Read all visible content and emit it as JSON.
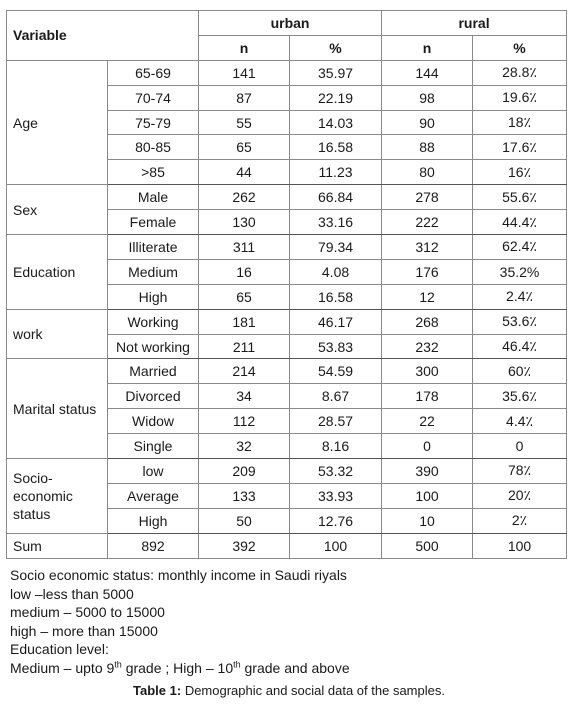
{
  "table": {
    "headers": {
      "variable": "Variable",
      "urban": "urban",
      "rural": "rural",
      "n": "n",
      "pct": "%"
    },
    "groups": [
      {
        "label": "Age",
        "rows": [
          {
            "cat": "65-69",
            "un": "141",
            "up": "35.97",
            "rn": "144",
            "rp": "28.8٪"
          },
          {
            "cat": "70-74",
            "un": "87",
            "up": "22.19",
            "rn": "98",
            "rp": "19.6٪"
          },
          {
            "cat": "75-79",
            "un": "55",
            "up": "14.03",
            "rn": "90",
            "rp": "18٪"
          },
          {
            "cat": "80-85",
            "un": "65",
            "up": "16.58",
            "rn": "88",
            "rp": "17.6٪"
          },
          {
            "cat": ">85",
            "un": "44",
            "up": "11.23",
            "rn": "80",
            "rp": "16٪"
          }
        ]
      },
      {
        "label": "Sex",
        "rows": [
          {
            "cat": "Male",
            "un": "262",
            "up": "66.84",
            "rn": "278",
            "rp": "55.6٪"
          },
          {
            "cat": "Female",
            "un": "130",
            "up": "33.16",
            "rn": "222",
            "rp": "44.4٪"
          }
        ]
      },
      {
        "label": "Education",
        "rows": [
          {
            "cat": "Illiterate",
            "un": "311",
            "up": "79.34",
            "rn": "312",
            "rp": "62.4٪"
          },
          {
            "cat": "Medium",
            "un": "16",
            "up": "4.08",
            "rn": "176",
            "rp": "35.2%"
          },
          {
            "cat": "High",
            "un": "65",
            "up": "16.58",
            "rn": "12",
            "rp": "2.4٪"
          }
        ]
      },
      {
        "label": "work",
        "rows": [
          {
            "cat": "Working",
            "un": "181",
            "up": "46.17",
            "rn": "268",
            "rp": "53.6٪"
          },
          {
            "cat": "Not working",
            "un": "211",
            "up": "53.83",
            "rn": "232",
            "rp": "46.4٪"
          }
        ]
      },
      {
        "label": "Marital status",
        "rows": [
          {
            "cat": "Married",
            "un": "214",
            "up": "54.59",
            "rn": "300",
            "rp": "60٪"
          },
          {
            "cat": "Divorced",
            "un": "34",
            "up": "8.67",
            "rn": "178",
            "rp": "35.6٪"
          },
          {
            "cat": "Widow",
            "un": "112",
            "up": "28.57",
            "rn": "22",
            "rp": "4.4٪"
          },
          {
            "cat": "Single",
            "un": "32",
            "up": "8.16",
            "rn": "0",
            "rp": "0"
          }
        ]
      },
      {
        "label": "Socio-economic status",
        "label_lines": [
          "Socio-",
          "economic",
          "status"
        ],
        "rows": [
          {
            "cat": "low",
            "un": "209",
            "up": "53.32",
            "rn": "390",
            "rp": "78٪"
          },
          {
            "cat": "Average",
            "un": "133",
            "up": "33.93",
            "rn": "100",
            "rp": "20٪"
          },
          {
            "cat": "High",
            "un": "50",
            "up": "12.76",
            "rn": "10",
            "rp": "2٪"
          }
        ]
      }
    ],
    "sum_row": {
      "label": "Sum",
      "total": "892",
      "un": "392",
      "up": "100",
      "rn": "500",
      "rp": "100"
    }
  },
  "notes": {
    "line1": "Socio economic status: monthly income in Saudi riyals",
    "line2": "low –less than 5000",
    "line3": "medium – 5000 to 15000",
    "line4": "high – more than 15000",
    "line5": "Education level:",
    "line6_a": "Medium – upto 9",
    "line6_sup1": "th",
    "line6_b": " grade ; High – 10",
    "line6_sup2": "th",
    "line6_c": " grade and above"
  },
  "caption": {
    "label": "Table 1:",
    "text": " Demographic and social data of the samples."
  }
}
